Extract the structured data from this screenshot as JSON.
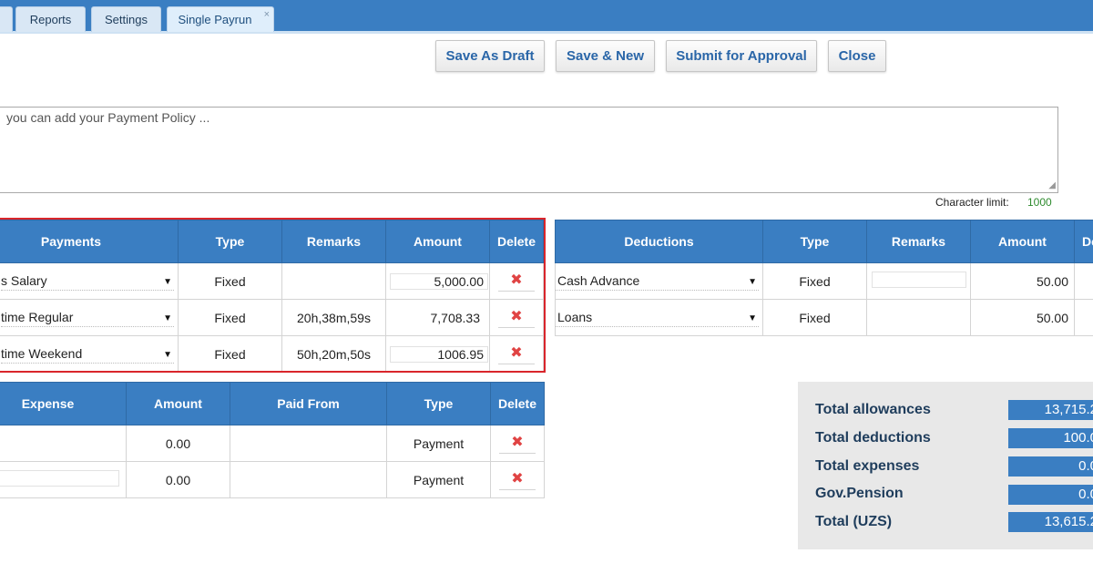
{
  "tabs": [
    {
      "label": ""
    },
    {
      "label": "Reports"
    },
    {
      "label": "Settings"
    },
    {
      "label": "Single Payrun",
      "close": "×"
    }
  ],
  "actions": {
    "save_draft": "Save As Draft",
    "save_new": "Save & New",
    "submit": "Submit for Approval",
    "close": "Close"
  },
  "policy": {
    "text": "you can add your Payment Policy ...",
    "char_limit_label": "Character limit:",
    "char_limit_value": "1000"
  },
  "payments": {
    "headers": [
      "Payments",
      "Type",
      "Remarks",
      "Amount",
      "Delete"
    ],
    "rows": [
      {
        "name": "s Salary",
        "type": "Fixed",
        "remarks": "",
        "amount": "5,000.00"
      },
      {
        "name": "time Regular",
        "type": "Fixed",
        "remarks": "20h,38m,59s",
        "amount": "7,708.33"
      },
      {
        "name": "time Weekend",
        "type": "Fixed",
        "remarks": "50h,20m,50s",
        "amount": "1006.95"
      }
    ]
  },
  "deductions": {
    "headers": [
      "Deductions",
      "Type",
      "Remarks",
      "Amount",
      "De"
    ],
    "rows": [
      {
        "name": "Cash Advance",
        "type": "Fixed",
        "remarks": "",
        "amount": "50.00"
      },
      {
        "name": "Loans",
        "type": "Fixed",
        "remarks": "",
        "amount": "50.00"
      }
    ]
  },
  "expenses": {
    "headers": [
      "Expense",
      "Amount",
      "Paid From",
      "Type",
      "Delete"
    ],
    "rows": [
      {
        "expense": "",
        "amount": "0.00",
        "paid_from": "",
        "type": "Payment"
      },
      {
        "expense": "",
        "amount": "0.00",
        "paid_from": "",
        "type": "Payment"
      }
    ]
  },
  "delete_icon": "✖",
  "totals": {
    "allowances_label": "Total allowances",
    "allowances_value": "13,715.2",
    "deductions_label": "Total deductions",
    "deductions_value": "100.0",
    "expenses_label": "Total expenses",
    "expenses_value": "0.0",
    "pension_label": "Gov.Pension",
    "pension_value": "0.0",
    "total_label": "Total (UZS)",
    "total_value": "13,615.2"
  },
  "colors": {
    "header_blue": "#3a7ec2",
    "button_text": "#2a66a8",
    "highlight_red": "#d9252b",
    "delete_red": "#e04343",
    "limit_green": "#2e8b2e"
  }
}
